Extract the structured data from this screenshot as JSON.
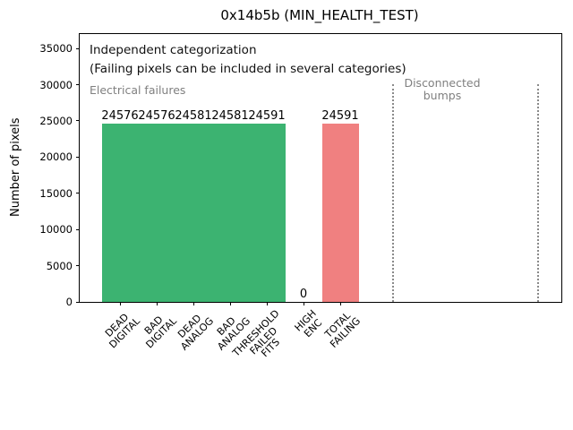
{
  "chart_data": {
    "type": "bar",
    "title": "0x14b5b (MIN_HEALTH_TEST)",
    "ylabel": "Number of pixels",
    "xlabel": "",
    "ylim": [
      0,
      37000
    ],
    "yticks": [
      0,
      5000,
      10000,
      15000,
      20000,
      25000,
      30000,
      35000
    ],
    "grid": false,
    "legend": "none",
    "categories": [
      "DEAD\nDIGITAL",
      "BAD\nDIGITAL",
      "DEAD\nANALOG",
      "BAD\nANALOG",
      "THRESHOLD\nFAILED\nFITS",
      "HIGH\nENC",
      "TOTAL\nFAILING"
    ],
    "values": [
      24576,
      24576,
      24581,
      24581,
      24591,
      0,
      24591
    ],
    "value_labels": [
      "24576",
      "24576",
      "24581",
      "24581",
      "24591",
      "0",
      "24591"
    ],
    "bar_colors": [
      "#3cb371",
      "#3cb371",
      "#3cb371",
      "#3cb371",
      "#3cb371",
      "#3cb371",
      "#f08080"
    ],
    "colors": {
      "green": "#3cb371",
      "red": "#f08080",
      "gray": "#808080"
    },
    "annotations": {
      "line1": "Independent categorization",
      "line2": "(Failing pixels can be included in several categories)",
      "region_left_label": "Electrical failures",
      "region_right_label": "Disconnected\nbumps"
    }
  }
}
